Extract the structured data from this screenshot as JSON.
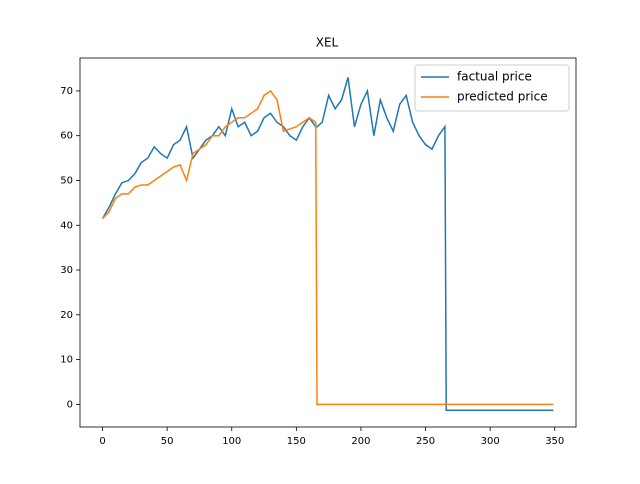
{
  "chart_data": {
    "type": "line",
    "title": "XEL",
    "x": [
      0,
      5,
      10,
      15,
      20,
      25,
      30,
      35,
      40,
      45,
      50,
      55,
      60,
      65,
      70,
      75,
      80,
      85,
      90,
      95,
      100,
      105,
      110,
      115,
      120,
      125,
      130,
      135,
      140,
      145,
      150,
      155,
      160,
      165,
      166,
      170,
      175,
      180,
      185,
      190,
      195,
      200,
      205,
      210,
      215,
      220,
      225,
      230,
      235,
      240,
      245,
      250,
      255,
      260,
      265,
      266,
      270,
      275,
      280,
      285,
      290,
      295,
      300,
      305,
      310,
      315,
      320,
      325,
      330,
      335,
      340,
      345,
      349
    ],
    "series": [
      {
        "name": "factual price",
        "color": "#1f77b4",
        "values": [
          41.5,
          44,
          47,
          49.5,
          50,
          51.5,
          54,
          55,
          57.5,
          56,
          55,
          58,
          59,
          62,
          55,
          57,
          59,
          60,
          62,
          60,
          66,
          62,
          63,
          60,
          61,
          64,
          65,
          63,
          62,
          60,
          59,
          62,
          64,
          62,
          62,
          63,
          69,
          66,
          68,
          73,
          62,
          67,
          70,
          60,
          68,
          64,
          61,
          67,
          69,
          63,
          60,
          58,
          57,
          60,
          62,
          -1.3,
          -1.3,
          -1.3,
          -1.3,
          -1.3,
          -1.3,
          -1.3,
          -1.3,
          -1.3,
          -1.3,
          -1.3,
          -1.3,
          -1.3,
          -1.3,
          -1.3,
          -1.3,
          -1.3,
          -1.3
        ]
      },
      {
        "name": "predicted price",
        "color": "#ff7f0e",
        "values": [
          41.5,
          43,
          46,
          47,
          47,
          48.5,
          49,
          49,
          50,
          51,
          52,
          53,
          53.5,
          50,
          56,
          57,
          58,
          60,
          60,
          62,
          63,
          64,
          64,
          65,
          66,
          69,
          70,
          68,
          61,
          61.5,
          62,
          63,
          64,
          63,
          0,
          0,
          0,
          0,
          0,
          0,
          0,
          0,
          0,
          0,
          0,
          0,
          0,
          0,
          0,
          0,
          0,
          0,
          0,
          0,
          0,
          0,
          0,
          0,
          0,
          0,
          0,
          0,
          0,
          0,
          0,
          0,
          0,
          0,
          0,
          0,
          0,
          0,
          0
        ]
      }
    ],
    "xlim": [
      -17.45,
      366.45
    ],
    "ylim": [
      -5.05,
      77.35
    ],
    "xticks": [
      0,
      50,
      100,
      150,
      200,
      250,
      300,
      350
    ],
    "yticks": [
      0,
      10,
      20,
      30,
      40,
      50,
      60,
      70
    ],
    "legend": "upper right"
  }
}
